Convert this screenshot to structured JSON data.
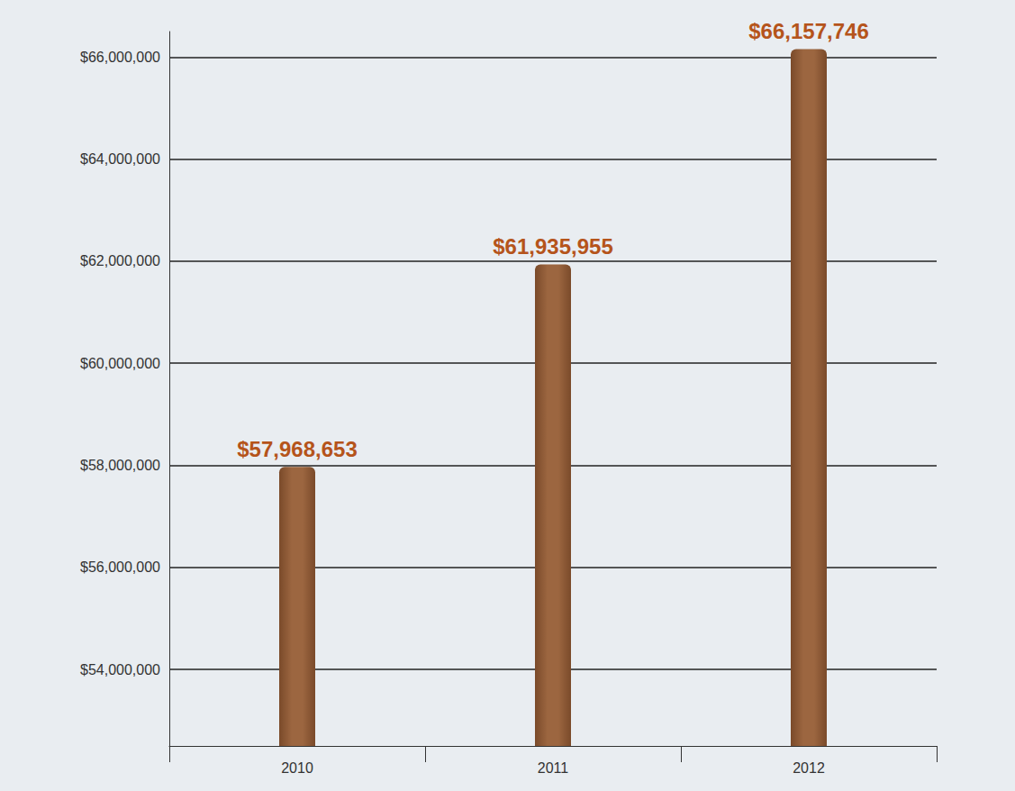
{
  "chart_data": {
    "type": "bar",
    "categories": [
      "2010",
      "2011",
      "2012"
    ],
    "values": [
      57968653,
      61935955,
      66157746
    ],
    "value_labels": [
      "$57,968,653",
      "$61,935,955",
      "$66,157,746"
    ],
    "data_labels": true,
    "color": "#9c6640",
    "ylim": [
      52500000,
      66500000
    ],
    "yticks": [
      {
        "value": 54000000,
        "label": "$54,000,000"
      },
      {
        "value": 56000000,
        "label": "$56,000,000"
      },
      {
        "value": 58000000,
        "label": "$58,000,000"
      },
      {
        "value": 60000000,
        "label": "$60,000,000"
      },
      {
        "value": 62000000,
        "label": "$62,000,000"
      },
      {
        "value": 64000000,
        "label": "$64,000,000"
      },
      {
        "value": 66000000,
        "label": "$66,000,000"
      }
    ],
    "grid": true
  }
}
